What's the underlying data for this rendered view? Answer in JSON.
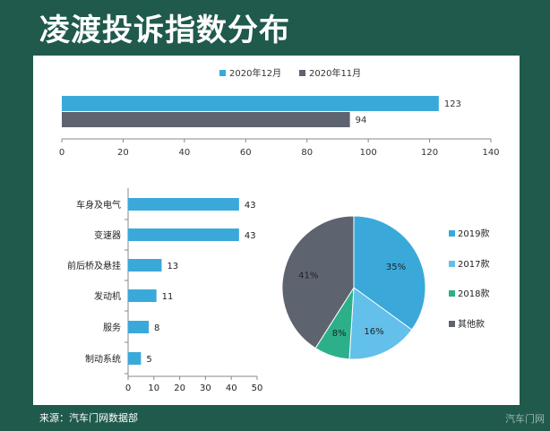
{
  "page": {
    "title": "凌渡投诉指数分布",
    "source": "来源：汽车门网数据部",
    "watermark": "汽车门网"
  },
  "colors": {
    "frame": "#1f5a4c",
    "blue": "#3aa9da",
    "gray": "#5e6370",
    "lightblue": "#62c0ea",
    "green": "#2bb08a"
  },
  "chart_data": [
    {
      "type": "bar",
      "orientation": "horizontal",
      "legend": [
        "2020年12月",
        "2020年11月"
      ],
      "legend_placement": "top",
      "series": [
        {
          "name": "2020年12月",
          "values": [
            123
          ]
        },
        {
          "name": "2020年11月",
          "values": [
            94
          ]
        }
      ],
      "xlim": [
        0,
        140
      ],
      "xticks": [
        0,
        20,
        40,
        60,
        80,
        100,
        120,
        140
      ],
      "grid": false
    },
    {
      "type": "bar",
      "orientation": "horizontal",
      "categories": [
        "车身及电气",
        "变速器",
        "前后桥及悬挂",
        "发动机",
        "服务",
        "制动系统"
      ],
      "values": [
        43,
        43,
        13,
        11,
        8,
        5
      ],
      "xlim": [
        0,
        50
      ],
      "xticks": [
        0,
        10,
        20,
        30,
        40,
        50
      ],
      "grid": false
    },
    {
      "type": "pie",
      "labels": [
        "2019款",
        "2017款",
        "2018款",
        "其他款"
      ],
      "values": [
        35,
        16,
        8,
        41
      ],
      "value_labels": [
        "35%",
        "16%",
        "8%",
        "41%"
      ],
      "legend_placement": "right"
    }
  ]
}
